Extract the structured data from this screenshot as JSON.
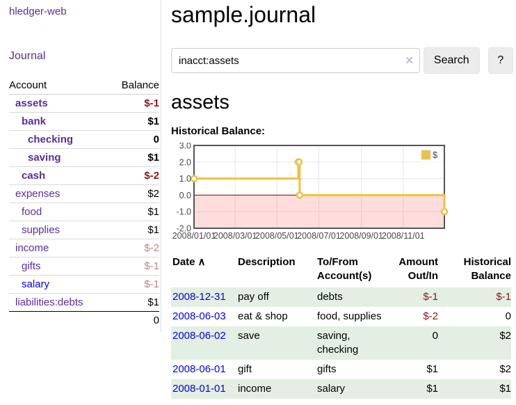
{
  "sidebar": {
    "brand": "hledger-web",
    "nav": [
      {
        "label": "Journal"
      }
    ],
    "table": {
      "account_header": "Account",
      "balance_header": "Balance",
      "accounts": [
        {
          "name": "assets",
          "indent": 1,
          "balance": "$-1",
          "bold": true
        },
        {
          "name": "bank",
          "indent": 2,
          "balance": "$1",
          "bold": true
        },
        {
          "name": "checking",
          "indent": 3,
          "balance": "0",
          "bold": true
        },
        {
          "name": "saving",
          "indent": 3,
          "balance": "$1",
          "bold": true
        },
        {
          "name": "cash",
          "indent": 2,
          "balance": "$-2",
          "bold": true
        },
        {
          "name": "expenses",
          "indent": 1,
          "balance": "$2"
        },
        {
          "name": "food",
          "indent": 2,
          "balance": "$1"
        },
        {
          "name": "supplies",
          "indent": 2,
          "balance": "$1"
        },
        {
          "name": "income",
          "indent": 1,
          "balance": "$-2"
        },
        {
          "name": "gifts",
          "indent": 2,
          "balance": "$-1"
        },
        {
          "name": "salary",
          "indent": 2,
          "balance": "$-1",
          "link": "blue"
        },
        {
          "name": "liabilities:debts",
          "indent": 1,
          "balance": "$1"
        }
      ],
      "total": "0"
    }
  },
  "header": {
    "title": "sample.journal"
  },
  "search": {
    "value": "inacct:assets",
    "clear_icon": "✕",
    "button_label": "Search",
    "help_label": "?"
  },
  "account_page": {
    "title": "assets",
    "chart_label": "Historical Balance:"
  },
  "chart_data": {
    "type": "line",
    "step": true,
    "title": "Historical Balance:",
    "series": [
      {
        "name": "$",
        "color": "#edc240",
        "points": [
          [
            "2008-01-01",
            1.0
          ],
          [
            "2008-06-01",
            2.0
          ],
          [
            "2008-06-02",
            2.0
          ],
          [
            "2008-06-03",
            0.0
          ],
          [
            "2008-12-31",
            -1.0
          ]
        ]
      }
    ],
    "x_ticks": [
      "2008/01/01",
      "2008/03/01",
      "2008/05/01",
      "2008/07/01",
      "2008/09/01",
      "2008/11/01"
    ],
    "y_ticks": [
      3.0,
      2.0,
      1.0,
      0.0,
      -1.0,
      -2.0
    ],
    "xlim": [
      "2008-01-01",
      "2008-12-31"
    ],
    "ylim": [
      -2.0,
      3.0
    ],
    "grid": true,
    "legend_position": "top-right",
    "negative_region_below": 0,
    "chart_colors": {
      "line": "#edc240",
      "marker_fill": "#ffffff",
      "border": "#545454",
      "grid": "#e6e6e6",
      "zero_line": "#990000",
      "negative_fill": "#ff6666",
      "axis_text": "#474747",
      "legend_swatch_border": "#cccccc"
    }
  },
  "register": {
    "headers": [
      "Date",
      "Description",
      "To/From Account(s)",
      "Amount Out/In",
      "Historical Balance"
    ],
    "sort_indicator": "∧",
    "rows": [
      {
        "date": "2008-12-31",
        "description": "pay off",
        "accounts": "debts",
        "amount": "$-1",
        "balance": "$-1"
      },
      {
        "date": "2008-06-03",
        "description": "eat & shop",
        "accounts": "food, supplies",
        "amount": "$-2",
        "balance": "0"
      },
      {
        "date": "2008-06-02",
        "description": "save",
        "accounts": "saving, checking",
        "amount": "0",
        "balance": "$2"
      },
      {
        "date": "2008-06-01",
        "description": "gift",
        "accounts": "gifts",
        "amount": "$1",
        "balance": "$2"
      },
      {
        "date": "2008-01-01",
        "description": "income",
        "accounts": "salary",
        "amount": "$1",
        "balance": "$1"
      }
    ]
  },
  "colors": {
    "link_purple": "#5a2ca0",
    "link_blue": "#0000ee",
    "neg_strong": "#8e1616",
    "neg_soft": "#c28585",
    "row_stripe_green": "#e3efe3",
    "sidebar_divider": "#dddddd",
    "table_line": "#d9d9d9",
    "button_bg": "#ececec",
    "input_border": "#cccccc",
    "clear_icon": "#c5b8d8",
    "axis_text": "#474747"
  }
}
